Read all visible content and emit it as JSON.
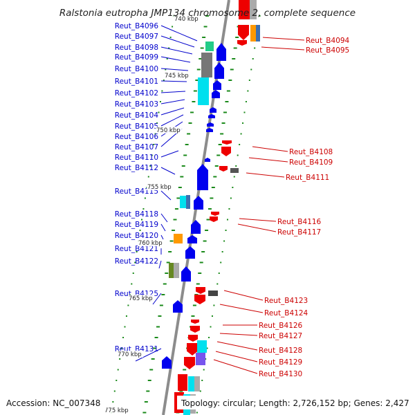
{
  "title": "Ralstonia eutropha JMP134 chromosome 2, complete sequence",
  "footer": {
    "accession": "Accession: NC_007348",
    "topology": "Topology: circular; Length: 2,726,152 bp; Genes: 2,427"
  },
  "colors": {
    "reverse_strand_label": "#0000cc",
    "forward_strand_label": "#cc0000",
    "reverse_strand_gene": "#0000ee",
    "forward_strand_gene": "#ee0000",
    "backbone": "#8c8c8c",
    "tick": "#1a8a1a"
  },
  "kbp_marks": [
    "740 kbp",
    "745 kbp",
    "750 kbp",
    "755 kbp",
    "760 kbp",
    "765 kbp",
    "770 kbp",
    "775 kbp"
  ],
  "left_labels": [
    "Reut_B4096",
    "Reut_B4097",
    "Reut_B4098",
    "Reut_B4099",
    "Reut_B4100",
    "Reut_B4101",
    "Reut_B4102",
    "Reut_B4103",
    "Reut_B4104",
    "Reut_B4105",
    "Reut_B4106",
    "Reut_B4107",
    "Reut_B4110",
    "Reut_B4112",
    "Reut_B4115",
    "Reut_B4118",
    "Reut_B4119",
    "Reut_B4120",
    "Reut_B4121",
    "Reut_B4122",
    "Reut_B4125",
    "Reut_B4131"
  ],
  "right_labels": [
    "Reut_B4094",
    "Reut_B4095",
    "Reut_B4108",
    "Reut_B4109",
    "Reut_B4111",
    "Reut_B4116",
    "Reut_B4117",
    "Reut_B4123",
    "Reut_B4124",
    "Reut_B4126",
    "Reut_B4127",
    "Reut_B4128",
    "Reut_B4129",
    "Reut_B4130"
  ]
}
